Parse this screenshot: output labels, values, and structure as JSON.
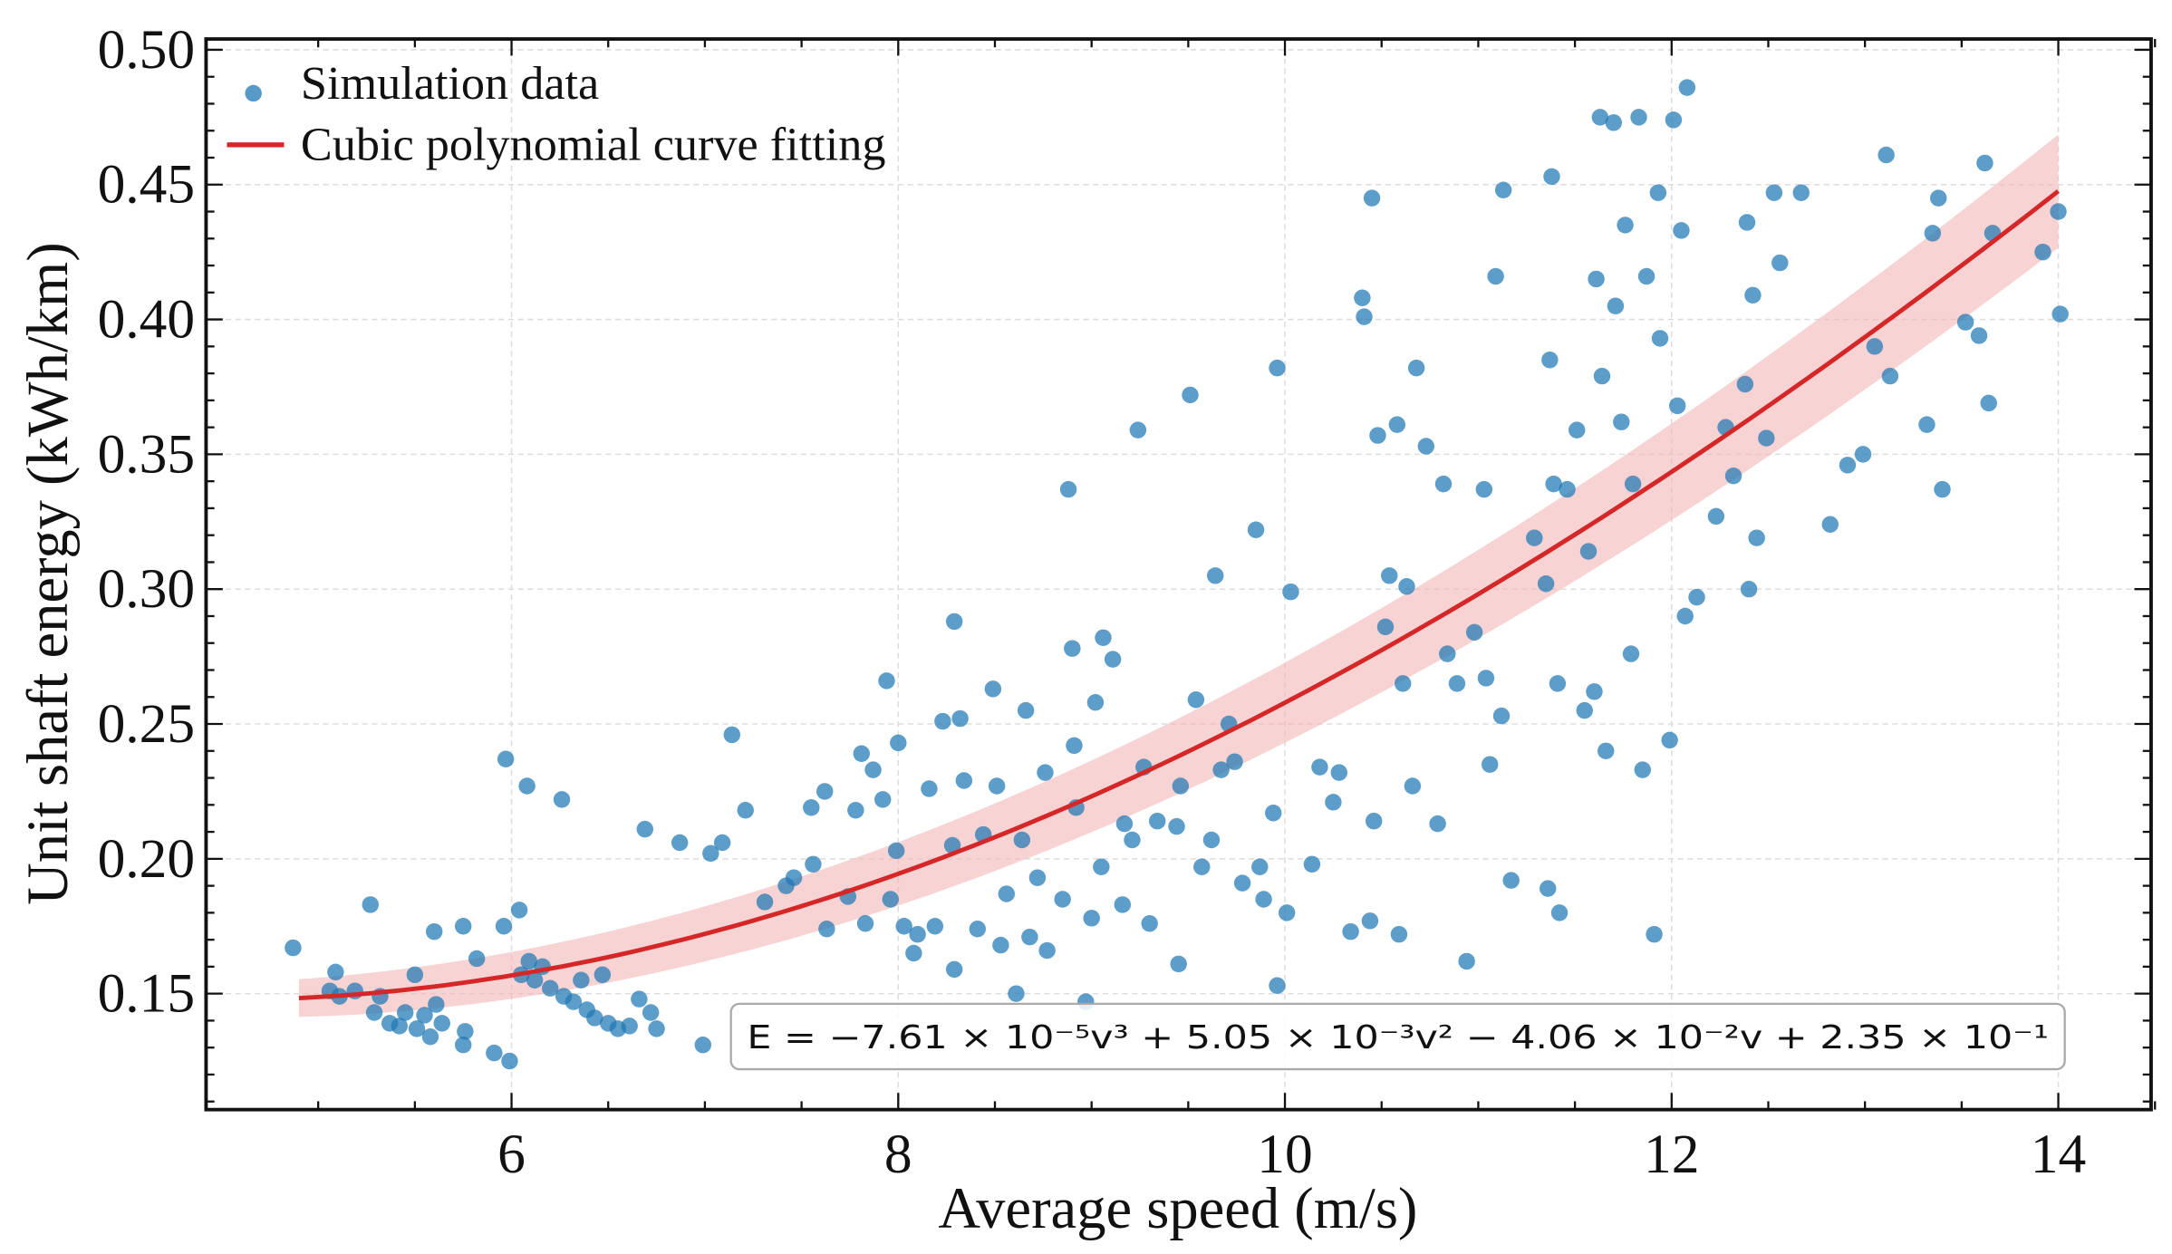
{
  "chart_data": {
    "type": "scatter",
    "title": "",
    "xlabel": "Average speed (m/s)",
    "ylabel": "Unit shaft energy (kWh/km)",
    "xlim": [
      4.42,
      14.48
    ],
    "ylim": [
      0.107,
      0.504
    ],
    "xticks": [
      6,
      8,
      10,
      12,
      14
    ],
    "xtick_labels": [
      "6",
      "8",
      "10",
      "12",
      "14"
    ],
    "yticks": [
      0.15,
      0.2,
      0.25,
      0.3,
      0.35,
      0.4,
      0.45,
      0.5
    ],
    "ytick_labels": [
      "0.15",
      "0.20",
      "0.25",
      "0.30",
      "0.35",
      "0.40",
      "0.45",
      "0.50"
    ],
    "grid": true,
    "legend_position": "top-left",
    "legend": [
      "Simulation data",
      "Cubic polynomial curve fitting"
    ],
    "colors": {
      "points": "#1f77b4",
      "curve": "#d62728",
      "band": "#f4b6b6"
    },
    "fit": {
      "name": "Cubic polynomial curve fitting",
      "coefficients": [
        -7.61e-05,
        0.00505,
        -0.0406,
        0.235
      ],
      "x_range": [
        4.9,
        14.0
      ],
      "band_halfwidth": [
        0.007,
        0.021
      ]
    },
    "equation": "E = −7.61 × 10⁻⁵v³ + 5.05 × 10⁻³v² − 4.06 × 10⁻²v + 2.35 × 10⁻¹",
    "series": [
      {
        "name": "Simulation data",
        "points": [
          [
            4.87,
            0.167
          ],
          [
            5.09,
            0.158
          ],
          [
            5.06,
            0.151
          ],
          [
            5.11,
            0.149
          ],
          [
            5.19,
            0.151
          ],
          [
            5.27,
            0.183
          ],
          [
            5.29,
            0.143
          ],
          [
            5.32,
            0.149
          ],
          [
            5.37,
            0.139
          ],
          [
            5.42,
            0.138
          ],
          [
            5.45,
            0.143
          ],
          [
            5.5,
            0.157
          ],
          [
            5.51,
            0.137
          ],
          [
            5.55,
            0.142
          ],
          [
            5.58,
            0.134
          ],
          [
            5.6,
            0.173
          ],
          [
            5.61,
            0.146
          ],
          [
            5.64,
            0.139
          ],
          [
            5.75,
            0.175
          ],
          [
            5.75,
            0.131
          ],
          [
            5.76,
            0.136
          ],
          [
            5.82,
            0.163
          ],
          [
            5.91,
            0.128
          ],
          [
            5.96,
            0.175
          ],
          [
            5.97,
            0.237
          ],
          [
            5.99,
            0.125
          ],
          [
            6.04,
            0.181
          ],
          [
            6.05,
            0.157
          ],
          [
            6.08,
            0.227
          ],
          [
            6.09,
            0.162
          ],
          [
            6.12,
            0.155
          ],
          [
            6.16,
            0.16
          ],
          [
            6.2,
            0.152
          ],
          [
            6.26,
            0.222
          ],
          [
            6.27,
            0.149
          ],
          [
            6.32,
            0.147
          ],
          [
            6.36,
            0.155
          ],
          [
            6.39,
            0.144
          ],
          [
            6.43,
            0.141
          ],
          [
            6.47,
            0.157
          ],
          [
            6.5,
            0.139
          ],
          [
            6.55,
            0.137
          ],
          [
            6.61,
            0.138
          ],
          [
            6.66,
            0.148
          ],
          [
            6.69,
            0.211
          ],
          [
            6.72,
            0.143
          ],
          [
            6.75,
            0.137
          ],
          [
            6.87,
            0.206
          ],
          [
            6.99,
            0.131
          ],
          [
            7.03,
            0.202
          ],
          [
            7.09,
            0.206
          ],
          [
            7.14,
            0.246
          ],
          [
            7.21,
            0.218
          ],
          [
            7.31,
            0.184
          ],
          [
            7.42,
            0.19
          ],
          [
            7.46,
            0.193
          ],
          [
            7.55,
            0.219
          ],
          [
            7.56,
            0.198
          ],
          [
            7.62,
            0.225
          ],
          [
            7.63,
            0.174
          ],
          [
            7.74,
            0.186
          ],
          [
            7.78,
            0.218
          ],
          [
            7.81,
            0.239
          ],
          [
            7.83,
            0.176
          ],
          [
            7.87,
            0.233
          ],
          [
            7.92,
            0.222
          ],
          [
            7.94,
            0.266
          ],
          [
            7.96,
            0.185
          ],
          [
            7.99,
            0.203
          ],
          [
            8.0,
            0.243
          ],
          [
            8.03,
            0.175
          ],
          [
            8.08,
            0.165
          ],
          [
            8.1,
            0.172
          ],
          [
            8.16,
            0.226
          ],
          [
            8.19,
            0.175
          ],
          [
            8.23,
            0.251
          ],
          [
            8.28,
            0.205
          ],
          [
            8.29,
            0.288
          ],
          [
            8.29,
            0.159
          ],
          [
            8.32,
            0.252
          ],
          [
            8.34,
            0.229
          ],
          [
            8.41,
            0.174
          ],
          [
            8.44,
            0.209
          ],
          [
            8.49,
            0.263
          ],
          [
            8.51,
            0.227
          ],
          [
            8.53,
            0.168
          ],
          [
            8.56,
            0.187
          ],
          [
            8.61,
            0.15
          ],
          [
            8.64,
            0.207
          ],
          [
            8.66,
            0.255
          ],
          [
            8.68,
            0.171
          ],
          [
            8.72,
            0.193
          ],
          [
            8.76,
            0.232
          ],
          [
            8.77,
            0.166
          ],
          [
            8.85,
            0.185
          ],
          [
            8.88,
            0.337
          ],
          [
            8.9,
            0.278
          ],
          [
            8.91,
            0.242
          ],
          [
            8.92,
            0.219
          ],
          [
            8.97,
            0.147
          ],
          [
            9.0,
            0.178
          ],
          [
            9.02,
            0.258
          ],
          [
            9.05,
            0.197
          ],
          [
            9.06,
            0.282
          ],
          [
            9.11,
            0.274
          ],
          [
            9.16,
            0.183
          ],
          [
            9.17,
            0.213
          ],
          [
            9.21,
            0.207
          ],
          [
            9.24,
            0.359
          ],
          [
            9.27,
            0.234
          ],
          [
            9.3,
            0.176
          ],
          [
            9.34,
            0.214
          ],
          [
            9.44,
            0.212
          ],
          [
            9.45,
            0.161
          ],
          [
            9.46,
            0.227
          ],
          [
            9.51,
            0.372
          ],
          [
            9.54,
            0.259
          ],
          [
            9.57,
            0.197
          ],
          [
            9.62,
            0.207
          ],
          [
            9.64,
            0.305
          ],
          [
            9.67,
            0.233
          ],
          [
            9.71,
            0.25
          ],
          [
            9.74,
            0.236
          ],
          [
            9.78,
            0.191
          ],
          [
            9.85,
            0.322
          ],
          [
            9.87,
            0.197
          ],
          [
            9.89,
            0.185
          ],
          [
            9.94,
            0.217
          ],
          [
            9.96,
            0.382
          ],
          [
            9.96,
            0.153
          ],
          [
            10.01,
            0.18
          ],
          [
            10.03,
            0.299
          ],
          [
            10.14,
            0.198
          ],
          [
            10.18,
            0.234
          ],
          [
            10.25,
            0.221
          ],
          [
            10.28,
            0.232
          ],
          [
            10.34,
            0.173
          ],
          [
            10.4,
            0.408
          ],
          [
            10.41,
            0.401
          ],
          [
            10.44,
            0.177
          ],
          [
            10.45,
            0.445
          ],
          [
            10.46,
            0.214
          ],
          [
            10.48,
            0.357
          ],
          [
            10.52,
            0.286
          ],
          [
            10.54,
            0.305
          ],
          [
            10.58,
            0.361
          ],
          [
            10.59,
            0.172
          ],
          [
            10.61,
            0.265
          ],
          [
            10.63,
            0.301
          ],
          [
            10.66,
            0.227
          ],
          [
            10.68,
            0.382
          ],
          [
            10.73,
            0.353
          ],
          [
            10.79,
            0.213
          ],
          [
            10.82,
            0.339
          ],
          [
            10.84,
            0.276
          ],
          [
            10.89,
            0.265
          ],
          [
            10.94,
            0.162
          ],
          [
            10.98,
            0.284
          ],
          [
            11.03,
            0.337
          ],
          [
            11.04,
            0.267
          ],
          [
            11.06,
            0.235
          ],
          [
            11.09,
            0.416
          ],
          [
            11.12,
            0.253
          ],
          [
            11.13,
            0.448
          ],
          [
            11.17,
            0.192
          ],
          [
            11.29,
            0.319
          ],
          [
            11.35,
            0.302
          ],
          [
            11.36,
            0.189
          ],
          [
            11.37,
            0.385
          ],
          [
            11.38,
            0.453
          ],
          [
            11.39,
            0.339
          ],
          [
            11.41,
            0.265
          ],
          [
            11.42,
            0.18
          ],
          [
            11.46,
            0.337
          ],
          [
            11.51,
            0.359
          ],
          [
            11.55,
            0.255
          ],
          [
            11.57,
            0.314
          ],
          [
            11.6,
            0.262
          ],
          [
            11.61,
            0.415
          ],
          [
            11.63,
            0.475
          ],
          [
            11.64,
            0.379
          ],
          [
            11.66,
            0.24
          ],
          [
            11.7,
            0.473
          ],
          [
            11.71,
            0.405
          ],
          [
            11.74,
            0.362
          ],
          [
            11.76,
            0.435
          ],
          [
            11.79,
            0.276
          ],
          [
            11.8,
            0.339
          ],
          [
            11.83,
            0.475
          ],
          [
            11.85,
            0.233
          ],
          [
            11.87,
            0.416
          ],
          [
            11.91,
            0.172
          ],
          [
            11.93,
            0.447
          ],
          [
            11.94,
            0.393
          ],
          [
            11.99,
            0.244
          ],
          [
            12.01,
            0.474
          ],
          [
            12.03,
            0.368
          ],
          [
            12.05,
            0.433
          ],
          [
            12.07,
            0.29
          ],
          [
            12.08,
            0.486
          ],
          [
            12.13,
            0.297
          ],
          [
            12.23,
            0.327
          ],
          [
            12.28,
            0.36
          ],
          [
            12.32,
            0.342
          ],
          [
            12.38,
            0.376
          ],
          [
            12.39,
            0.436
          ],
          [
            12.4,
            0.3
          ],
          [
            12.42,
            0.409
          ],
          [
            12.44,
            0.319
          ],
          [
            12.49,
            0.356
          ],
          [
            12.53,
            0.447
          ],
          [
            12.56,
            0.421
          ],
          [
            12.67,
            0.447
          ],
          [
            12.82,
            0.324
          ],
          [
            12.91,
            0.346
          ],
          [
            12.99,
            0.35
          ],
          [
            13.05,
            0.39
          ],
          [
            13.11,
            0.461
          ],
          [
            13.13,
            0.379
          ],
          [
            13.32,
            0.361
          ],
          [
            13.35,
            0.432
          ],
          [
            13.38,
            0.445
          ],
          [
            13.4,
            0.337
          ],
          [
            13.52,
            0.399
          ],
          [
            13.59,
            0.394
          ],
          [
            13.62,
            0.458
          ],
          [
            13.64,
            0.369
          ],
          [
            13.66,
            0.432
          ],
          [
            13.92,
            0.425
          ],
          [
            14.0,
            0.44
          ],
          [
            14.01,
            0.402
          ]
        ]
      }
    ]
  }
}
